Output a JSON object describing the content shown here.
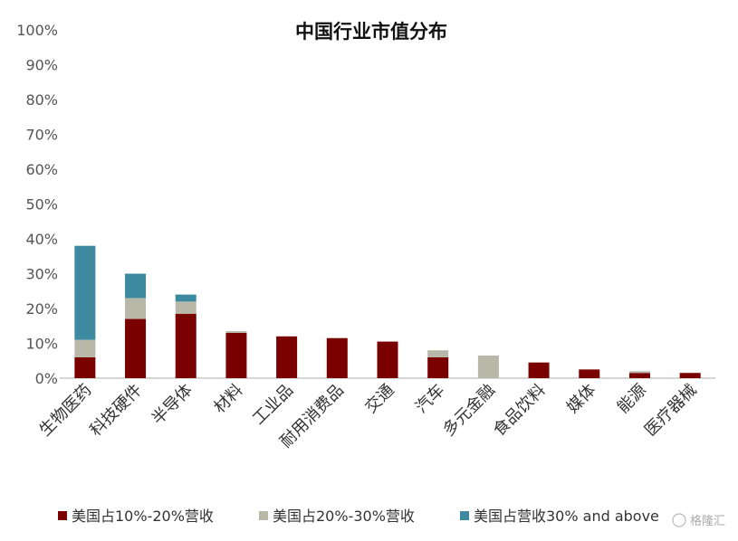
{
  "chart_data": {
    "type": "bar",
    "stacked": true,
    "title": "中国行业市值分布",
    "categories": [
      "生物医药",
      "科技硬件",
      "半导体",
      "材料",
      "工业品",
      "耐用消费品",
      "交通",
      "汽车",
      "多元金融",
      "食品饮料",
      "媒体",
      "能源",
      "医疗器械"
    ],
    "series": [
      {
        "name": "美国占10%-20%营收",
        "color": "#7a0000",
        "values": [
          6,
          17,
          18.5,
          13,
          12,
          11.5,
          10.5,
          6,
          0,
          4.5,
          2.5,
          1.5,
          1.5
        ]
      },
      {
        "name": "美国占20%-30%营收",
        "color": "#b8b8a8",
        "values": [
          5,
          6,
          3.5,
          0.5,
          0,
          0,
          0,
          2,
          6.5,
          0,
          0,
          0.5,
          0
        ]
      },
      {
        "name": "美国占营收30% and above",
        "color": "#3d8aa0",
        "values": [
          27,
          7,
          2,
          0,
          0,
          0,
          0,
          0,
          0,
          0,
          0,
          0,
          0
        ]
      }
    ],
    "ylim": [
      0,
      100
    ],
    "yticks": [
      "0%",
      "10%",
      "20%",
      "30%",
      "40%",
      "50%",
      "60%",
      "70%",
      "80%",
      "90%",
      "100%"
    ],
    "grid": false,
    "legend_position": "bottom",
    "xlabel": "",
    "ylabel": ""
  },
  "watermark": "格隆汇"
}
